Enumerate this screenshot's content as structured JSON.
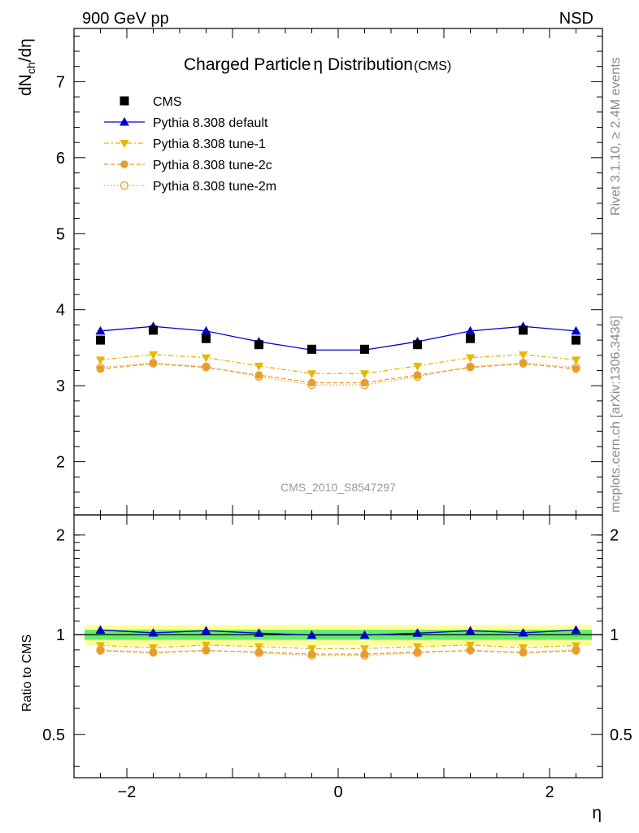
{
  "header": {
    "left_label": "900 GeV pp",
    "right_label": "NSD"
  },
  "title": {
    "main_prefix": "Charged Particle",
    "main_symbol": "η",
    "main_suffix": " Distribution",
    "tag": "(CMS)"
  },
  "side_labels": {
    "top": "Rivet 3.1.10, ≥ 2.4M events",
    "bottom": "mcplots.cern.ch [arXiv:1306.3436]"
  },
  "watermark": "CMS_2010_S8547297",
  "ylabel_top": {
    "base": "dN",
    "sub": "ch",
    "suffix": "/dη"
  },
  "ylabel_ratio": "Ratio to CMS",
  "xlabel": "η",
  "colors": {
    "cms": "#000000",
    "default": "#0000cc",
    "tune1": "#e6b800",
    "tune2c": "#e89c28",
    "tune2m": "#e6a040",
    "band_inner": "#66ee66",
    "band_outer": "#ffff99"
  },
  "chart_data": [
    {
      "type": "scatter",
      "panel": "main",
      "xlim": [
        -2.5,
        2.5
      ],
      "ylim": [
        1.3,
        7.7
      ],
      "yticks": [
        "2",
        "3",
        "4",
        "5",
        "6",
        "7"
      ],
      "ytick_values": [
        2,
        3,
        4,
        5,
        6,
        7
      ],
      "x": [
        -2.25,
        -1.75,
        -1.25,
        -0.75,
        -0.25,
        0.25,
        0.75,
        1.25,
        1.75,
        2.25
      ],
      "series": [
        {
          "name": "CMS",
          "style": "square",
          "values": [
            3.6,
            3.73,
            3.62,
            3.54,
            3.48,
            3.48,
            3.54,
            3.62,
            3.73,
            3.6
          ]
        },
        {
          "name": "Pythia 8.308 default",
          "style": "line-triangle-up",
          "values": [
            3.72,
            3.78,
            3.72,
            3.58,
            3.47,
            3.47,
            3.58,
            3.72,
            3.78,
            3.72
          ]
        },
        {
          "name": "Pythia 8.308 tune-1",
          "style": "dashdot-triangle-down",
          "values": [
            3.34,
            3.41,
            3.37,
            3.26,
            3.16,
            3.16,
            3.26,
            3.37,
            3.41,
            3.34
          ]
        },
        {
          "name": "Pythia 8.308 tune-2c",
          "style": "dashed-circle",
          "values": [
            3.22,
            3.29,
            3.24,
            3.14,
            3.04,
            3.04,
            3.14,
            3.24,
            3.29,
            3.22
          ]
        },
        {
          "name": "Pythia 8.308 tune-2m",
          "style": "dotted-open-circle",
          "values": [
            3.24,
            3.3,
            3.25,
            3.12,
            3.01,
            3.01,
            3.12,
            3.25,
            3.3,
            3.24
          ]
        }
      ],
      "legend": "top-left"
    },
    {
      "type": "line",
      "panel": "ratio",
      "xlim": [
        -2.5,
        2.5
      ],
      "ylim": [
        0.37,
        2.3
      ],
      "scale": "log",
      "yticks": [
        "0.5",
        "1",
        "2"
      ],
      "ytick_values": [
        0.5,
        1,
        2
      ],
      "xticks": [
        "−2",
        "0",
        "2"
      ],
      "xtick_values": [
        -2,
        0,
        2
      ],
      "band_inner": [
        0.965,
        1.035
      ],
      "band_outer": [
        0.93,
        1.07
      ],
      "x": [
        -2.25,
        -1.75,
        -1.25,
        -0.75,
        -0.25,
        0.25,
        0.75,
        1.25,
        1.75,
        2.25
      ],
      "series": [
        {
          "name": "Pythia 8.308 default",
          "values": [
            1.033,
            1.013,
            1.028,
            1.011,
            0.997,
            0.997,
            1.011,
            1.028,
            1.013,
            1.033
          ]
        },
        {
          "name": "Pythia 8.308 tune-1",
          "values": [
            0.928,
            0.914,
            0.931,
            0.921,
            0.908,
            0.908,
            0.921,
            0.931,
            0.914,
            0.928
          ]
        },
        {
          "name": "Pythia 8.308 tune-2c",
          "values": [
            0.894,
            0.882,
            0.895,
            0.887,
            0.874,
            0.874,
            0.887,
            0.895,
            0.882,
            0.894
          ]
        },
        {
          "name": "Pythia 8.308 tune-2m",
          "values": [
            0.9,
            0.885,
            0.898,
            0.881,
            0.866,
            0.866,
            0.881,
            0.898,
            0.885,
            0.9
          ]
        }
      ]
    }
  ]
}
